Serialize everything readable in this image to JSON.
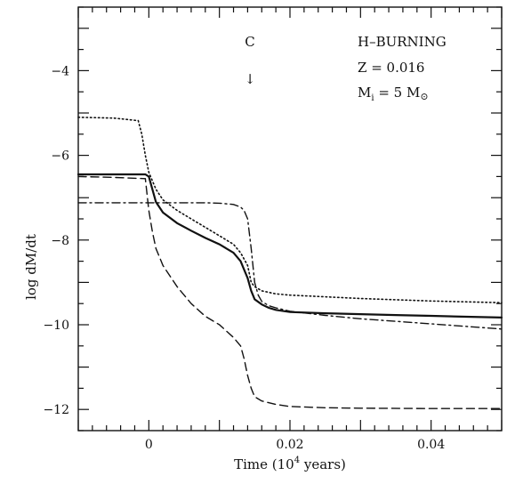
{
  "chart_data": {
    "type": "line",
    "xlabel_prefix": "Time (10",
    "xlabel_exp": "4",
    "xlabel_suffix": " years)",
    "ylabel": "log dM/dt",
    "xlim": [
      -0.01,
      0.05
    ],
    "ylim": [
      -12.5,
      -2.5
    ],
    "x_ticks": [
      0,
      0.02,
      0.04
    ],
    "x_tick_labels": [
      "0",
      "0.02",
      "0.04"
    ],
    "y_ticks": [
      -4,
      -6,
      -8,
      -10,
      -12
    ],
    "y_tick_labels": [
      "−4",
      "−6",
      "−8",
      "−10",
      "−12"
    ],
    "annotations": {
      "marker_label": "C",
      "marker_arrow": "↓",
      "marker_x": 0.0145,
      "line1": "H–BURNING",
      "line2": "Z = 0.016",
      "line3_main": "M",
      "line3_sub": "i",
      "line3_rest": " = 5 M",
      "line3_sym": "⊙"
    },
    "series": [
      {
        "style": "solid",
        "x": [
          -0.01,
          -0.005,
          -0.0005,
          0.0,
          0.0005,
          0.001,
          0.002,
          0.004,
          0.006,
          0.008,
          0.01,
          0.012,
          0.013,
          0.014,
          0.0145,
          0.015,
          0.016,
          0.017,
          0.018,
          0.02,
          0.025,
          0.03,
          0.035,
          0.04,
          0.045,
          0.05
        ],
        "y": [
          -6.45,
          -6.45,
          -6.45,
          -6.5,
          -6.8,
          -7.1,
          -7.35,
          -7.6,
          -7.78,
          -7.95,
          -8.1,
          -8.3,
          -8.5,
          -8.9,
          -9.2,
          -9.4,
          -9.52,
          -9.6,
          -9.65,
          -9.7,
          -9.73,
          -9.75,
          -9.77,
          -9.79,
          -9.81,
          -9.83
        ]
      },
      {
        "style": "dotted",
        "x": [
          -0.01,
          -0.005,
          -0.0015,
          -0.001,
          -0.0005,
          0.0,
          0.001,
          0.002,
          0.004,
          0.006,
          0.008,
          0.01,
          0.012,
          0.013,
          0.014,
          0.0145,
          0.015,
          0.016,
          0.018,
          0.02,
          0.03,
          0.04,
          0.05
        ],
        "y": [
          -5.1,
          -5.12,
          -5.18,
          -5.5,
          -6.0,
          -6.4,
          -6.8,
          -7.05,
          -7.3,
          -7.5,
          -7.7,
          -7.9,
          -8.1,
          -8.3,
          -8.6,
          -9.0,
          -9.1,
          -9.2,
          -9.27,
          -9.3,
          -9.38,
          -9.44,
          -9.48
        ]
      },
      {
        "style": "dashed",
        "x": [
          -0.01,
          -0.005,
          -0.0005,
          0.0,
          0.0005,
          0.001,
          0.002,
          0.004,
          0.006,
          0.008,
          0.01,
          0.012,
          0.013,
          0.0135,
          0.014,
          0.0145,
          0.015,
          0.016,
          0.018,
          0.02,
          0.025,
          0.03,
          0.04,
          0.05
        ],
        "y": [
          -6.5,
          -6.52,
          -6.55,
          -7.3,
          -7.8,
          -8.2,
          -8.6,
          -9.1,
          -9.5,
          -9.8,
          -10.0,
          -10.3,
          -10.5,
          -10.8,
          -11.2,
          -11.5,
          -11.7,
          -11.8,
          -11.88,
          -11.93,
          -11.96,
          -11.97,
          -11.98,
          -11.98
        ]
      },
      {
        "style": "dashdot",
        "x": [
          -0.01,
          -0.005,
          0.0,
          0.005,
          0.008,
          0.01,
          0.012,
          0.013,
          0.0135,
          0.014,
          0.0145,
          0.015,
          0.0155,
          0.016,
          0.017,
          0.018,
          0.02,
          0.025,
          0.03,
          0.04,
          0.05
        ],
        "y": [
          -7.12,
          -7.12,
          -7.12,
          -7.12,
          -7.12,
          -7.13,
          -7.16,
          -7.22,
          -7.3,
          -7.5,
          -8.2,
          -9.0,
          -9.3,
          -9.45,
          -9.55,
          -9.6,
          -9.68,
          -9.78,
          -9.86,
          -9.98,
          -10.1
        ]
      }
    ]
  }
}
